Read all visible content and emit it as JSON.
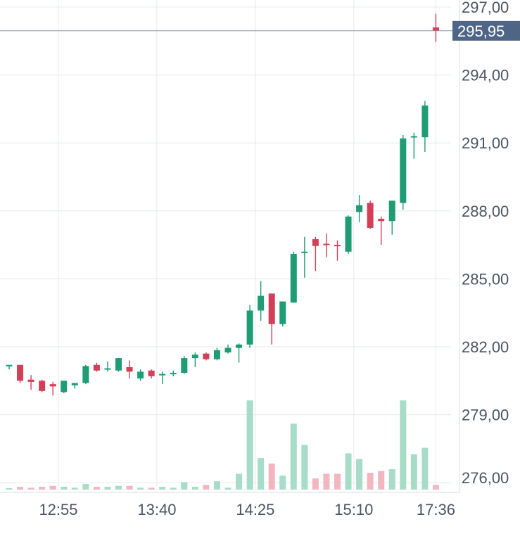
{
  "chart_data": {
    "type": "candlestick",
    "colors": {
      "up": "#1e9c74",
      "down": "#d33f56",
      "up_volume": "#a7dcc8",
      "down_volume": "#f2b6c0",
      "grid": "#e6e9ee",
      "axis_text": "#4b5563",
      "last_price_bg": "#4f6586"
    },
    "y_ticks": [
      "297,00",
      "294,00",
      "291,00",
      "288,00",
      "285,00",
      "282,00",
      "279,00",
      "276,00"
    ],
    "y_tick_values": [
      297,
      294,
      291,
      288,
      285,
      282,
      279,
      276
    ],
    "ylim": [
      275.5,
      297.5
    ],
    "x_ticks": [
      "12:55",
      "13:40",
      "14:25",
      "15:10",
      "17:36"
    ],
    "x_tick_index": [
      4.5,
      13.5,
      22.5,
      31.5,
      39
    ],
    "last_price": {
      "value": 295.95,
      "label": "295,95"
    },
    "grid": true,
    "candles": [
      {
        "o": 281.15,
        "h": 281.2,
        "l": 281.0,
        "c": 281.2,
        "v": 0
      },
      {
        "o": 281.2,
        "h": 281.2,
        "l": 280.4,
        "c": 280.5,
        "v": 3
      },
      {
        "o": 280.55,
        "h": 280.75,
        "l": 280.1,
        "c": 280.45,
        "v": 2
      },
      {
        "o": 280.5,
        "h": 280.55,
        "l": 280.0,
        "c": 280.05,
        "v": 3
      },
      {
        "o": 280.35,
        "h": 280.45,
        "l": 279.85,
        "c": 280.25,
        "v": 4
      },
      {
        "o": 280.0,
        "h": 280.5,
        "l": 279.95,
        "c": 280.5,
        "v": 3
      },
      {
        "o": 280.3,
        "h": 280.4,
        "l": 280.15,
        "c": 280.4,
        "v": 2
      },
      {
        "o": 280.4,
        "h": 281.2,
        "l": 280.35,
        "c": 281.15,
        "v": 6
      },
      {
        "o": 281.2,
        "h": 281.3,
        "l": 280.9,
        "c": 280.95,
        "v": 3
      },
      {
        "o": 281.05,
        "h": 281.35,
        "l": 280.9,
        "c": 281.05,
        "v": 3
      },
      {
        "o": 280.95,
        "h": 281.5,
        "l": 280.9,
        "c": 281.5,
        "v": 4
      },
      {
        "o": 281.1,
        "h": 281.4,
        "l": 280.6,
        "c": 280.9,
        "v": 4
      },
      {
        "o": 280.6,
        "h": 281.0,
        "l": 280.5,
        "c": 280.9,
        "v": 2
      },
      {
        "o": 280.95,
        "h": 281.0,
        "l": 280.6,
        "c": 280.7,
        "v": 2
      },
      {
        "o": 280.75,
        "h": 280.9,
        "l": 280.35,
        "c": 280.8,
        "v": 3
      },
      {
        "o": 280.8,
        "h": 280.95,
        "l": 280.7,
        "c": 280.85,
        "v": 2
      },
      {
        "o": 280.85,
        "h": 281.6,
        "l": 280.8,
        "c": 281.5,
        "v": 8
      },
      {
        "o": 281.5,
        "h": 281.75,
        "l": 281.1,
        "c": 281.65,
        "v": 3
      },
      {
        "o": 281.7,
        "h": 281.75,
        "l": 281.4,
        "c": 281.45,
        "v": 5
      },
      {
        "o": 281.45,
        "h": 281.95,
        "l": 281.4,
        "c": 281.85,
        "v": 9
      },
      {
        "o": 281.75,
        "h": 282.1,
        "l": 281.7,
        "c": 281.95,
        "v": 2
      },
      {
        "o": 281.95,
        "h": 282.15,
        "l": 281.3,
        "c": 282.1,
        "v": 17
      },
      {
        "o": 282.1,
        "h": 283.85,
        "l": 281.95,
        "c": 283.6,
        "v": 96
      },
      {
        "o": 283.6,
        "h": 284.9,
        "l": 283.15,
        "c": 284.25,
        "v": 34
      },
      {
        "o": 284.35,
        "h": 284.35,
        "l": 282.1,
        "c": 283.0,
        "v": 28
      },
      {
        "o": 283.0,
        "h": 284.0,
        "l": 282.9,
        "c": 284.0,
        "v": 15
      },
      {
        "o": 283.95,
        "h": 286.2,
        "l": 283.95,
        "c": 286.1,
        "v": 71
      },
      {
        "o": 286.2,
        "h": 286.85,
        "l": 285.05,
        "c": 286.2,
        "v": 48
      },
      {
        "o": 286.75,
        "h": 286.85,
        "l": 285.35,
        "c": 286.45,
        "v": 12
      },
      {
        "o": 286.55,
        "h": 287.0,
        "l": 285.95,
        "c": 286.5,
        "v": 17
      },
      {
        "o": 286.5,
        "h": 286.7,
        "l": 285.8,
        "c": 286.45,
        "v": 17
      },
      {
        "o": 286.2,
        "h": 287.8,
        "l": 286.1,
        "c": 287.75,
        "v": 39
      },
      {
        "o": 287.95,
        "h": 288.7,
        "l": 287.5,
        "c": 288.25,
        "v": 33
      },
      {
        "o": 288.35,
        "h": 288.45,
        "l": 287.2,
        "c": 287.25,
        "v": 18
      },
      {
        "o": 287.65,
        "h": 287.75,
        "l": 286.5,
        "c": 287.55,
        "v": 20
      },
      {
        "o": 287.55,
        "h": 288.45,
        "l": 286.95,
        "c": 288.45,
        "v": 22
      },
      {
        "o": 288.35,
        "h": 291.35,
        "l": 288.05,
        "c": 291.2,
        "v": 96
      },
      {
        "o": 291.25,
        "h": 291.45,
        "l": 290.3,
        "c": 291.3,
        "v": 38
      },
      {
        "o": 291.25,
        "h": 292.85,
        "l": 290.6,
        "c": 292.65,
        "v": 45
      },
      {
        "o": 296.1,
        "h": 296.7,
        "l": 295.45,
        "c": 295.95,
        "v": 5
      }
    ]
  }
}
